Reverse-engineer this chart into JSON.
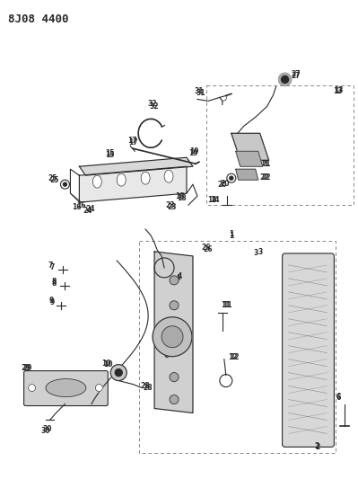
{
  "title": "8J08 4400",
  "bg_color": "#ffffff",
  "fig_width": 3.99,
  "fig_height": 5.33,
  "dpi": 100,
  "line_color": "#2a2a2a",
  "label_fontsize": 5.5
}
